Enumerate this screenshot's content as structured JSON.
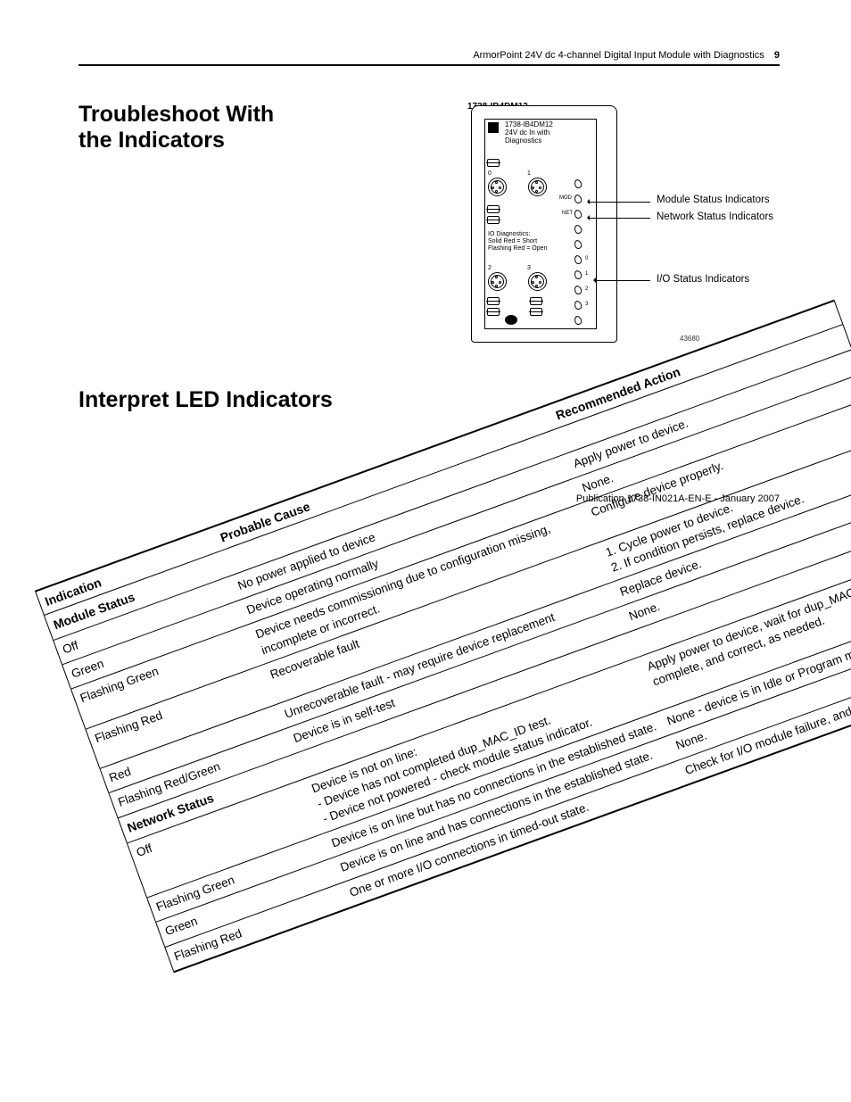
{
  "header": {
    "doc_title": "ArmorPoint 24V dc 4-channel Digital Input Module with Diagnostics",
    "page_number": "9"
  },
  "section1_title": "Troubleshoot With the Indicators",
  "diagram": {
    "part_number": "1738-IB4DM12",
    "module_label_line1": "1738-IB4DM12",
    "module_label_line2": "24V dc In with",
    "module_label_line3": "Diagnostics",
    "diag_line1": "IO Diagnostics:",
    "diag_line2": "Solid Red = Short",
    "diag_line3": "Flashing Red = Open",
    "mod_label": "MOD",
    "net_label": "NET",
    "callout_module": "Module Status Indicators",
    "callout_network": "Network Status Indicators",
    "callout_io": "I/O Status Indicators",
    "ref_number": "43680"
  },
  "section2_title": "Interpret LED Indicators",
  "table": {
    "columns": [
      "Indication",
      "Probable Cause",
      "Recommended Action"
    ],
    "group1": "Module Status",
    "rows1": [
      [
        "Off",
        "No power applied to device",
        "Apply power to device."
      ],
      [
        "Green",
        "Device operating normally",
        "None."
      ],
      [
        "Flashing Green",
        "Device needs commissioning due to configuration missing, incomplete or incorrect.",
        "Configure device properly."
      ],
      [
        "Flashing Red",
        "Recoverable fault",
        "1. Cycle power to device.\n2. If condition persists, replace device."
      ],
      [
        "Red",
        "Unrecoverable fault - may require device replacement",
        "Replace device."
      ],
      [
        "Flashing Red/Green",
        "Device is in self-test",
        "None."
      ]
    ],
    "group2": "Network Status",
    "rows2": [
      [
        "Off",
        "Device is not on line:\n- Device has not completed dup_MAC_ID test.\n- Device not powered - check module status indicator.",
        "Apply power to device, wait for dup_MAC_id to complete, and correct, as needed."
      ],
      [
        "Flashing Green",
        "Device is on line but has no connections in the established state.",
        "None - device is in Idle or Program mode."
      ],
      [
        "Green",
        "Device is on line and has connections in the established state.",
        "None."
      ],
      [
        "Flashing Red",
        "One or more I/O connections in timed-out state.",
        "Check for I/O module failure, and correct, as needed."
      ]
    ]
  },
  "footer": "Publication 1738-IN021A-EN-E - January 2007"
}
